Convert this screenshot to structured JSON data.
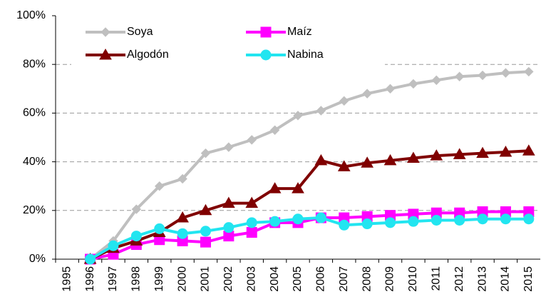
{
  "chart_data": {
    "type": "line",
    "categories": [
      "1995",
      "1996",
      "1997",
      "1998",
      "1999",
      "2000",
      "2001",
      "2002",
      "2003",
      "2004",
      "2005",
      "2006",
      "2007",
      "2008",
      "2009",
      "2010",
      "2011",
      "2012",
      "2013",
      "2014",
      "2015"
    ],
    "series": [
      {
        "name": "Soya",
        "color": "#bfbfbf",
        "marker": "diamond",
        "values": [
          null,
          0,
          7.5,
          20.5,
          30,
          33,
          43.5,
          46,
          49,
          53,
          59,
          61,
          65,
          68,
          70,
          72,
          73.5,
          75,
          75.5,
          76.5,
          77
        ]
      },
      {
        "name": "Maíz",
        "color": "#ff00ff",
        "marker": "square",
        "values": [
          null,
          0,
          2,
          6,
          8,
          7.5,
          7,
          9.5,
          11,
          15,
          15,
          17,
          17,
          17.5,
          18,
          18.5,
          19,
          19,
          19.5,
          19.5,
          19.5
        ]
      },
      {
        "name": "Algodón",
        "color": "#800000",
        "marker": "triangle",
        "values": [
          null,
          0,
          4.5,
          7.5,
          11,
          17,
          20,
          23,
          23,
          29,
          29,
          40.5,
          38,
          39.5,
          40.5,
          41.5,
          42.5,
          43,
          43.5,
          44,
          44.5
        ]
      },
      {
        "name": "Nabina",
        "color": "#22e5f0",
        "marker": "circle",
        "values": [
          null,
          0,
          5.5,
          9.5,
          12.5,
          10.5,
          11.5,
          13,
          15,
          15.5,
          16.5,
          17,
          14,
          14.5,
          15,
          15.5,
          16,
          16,
          16.5,
          16.5,
          16.5
        ]
      }
    ],
    "ylim": [
      0,
      100
    ],
    "yticks": [
      {
        "value": 0,
        "label": "0%"
      },
      {
        "value": 20,
        "label": "20%"
      },
      {
        "value": 40,
        "label": "40%"
      },
      {
        "value": 60,
        "label": "60%"
      },
      {
        "value": 80,
        "label": "80%"
      },
      {
        "value": 100,
        "label": "100%"
      }
    ],
    "grid": true
  }
}
